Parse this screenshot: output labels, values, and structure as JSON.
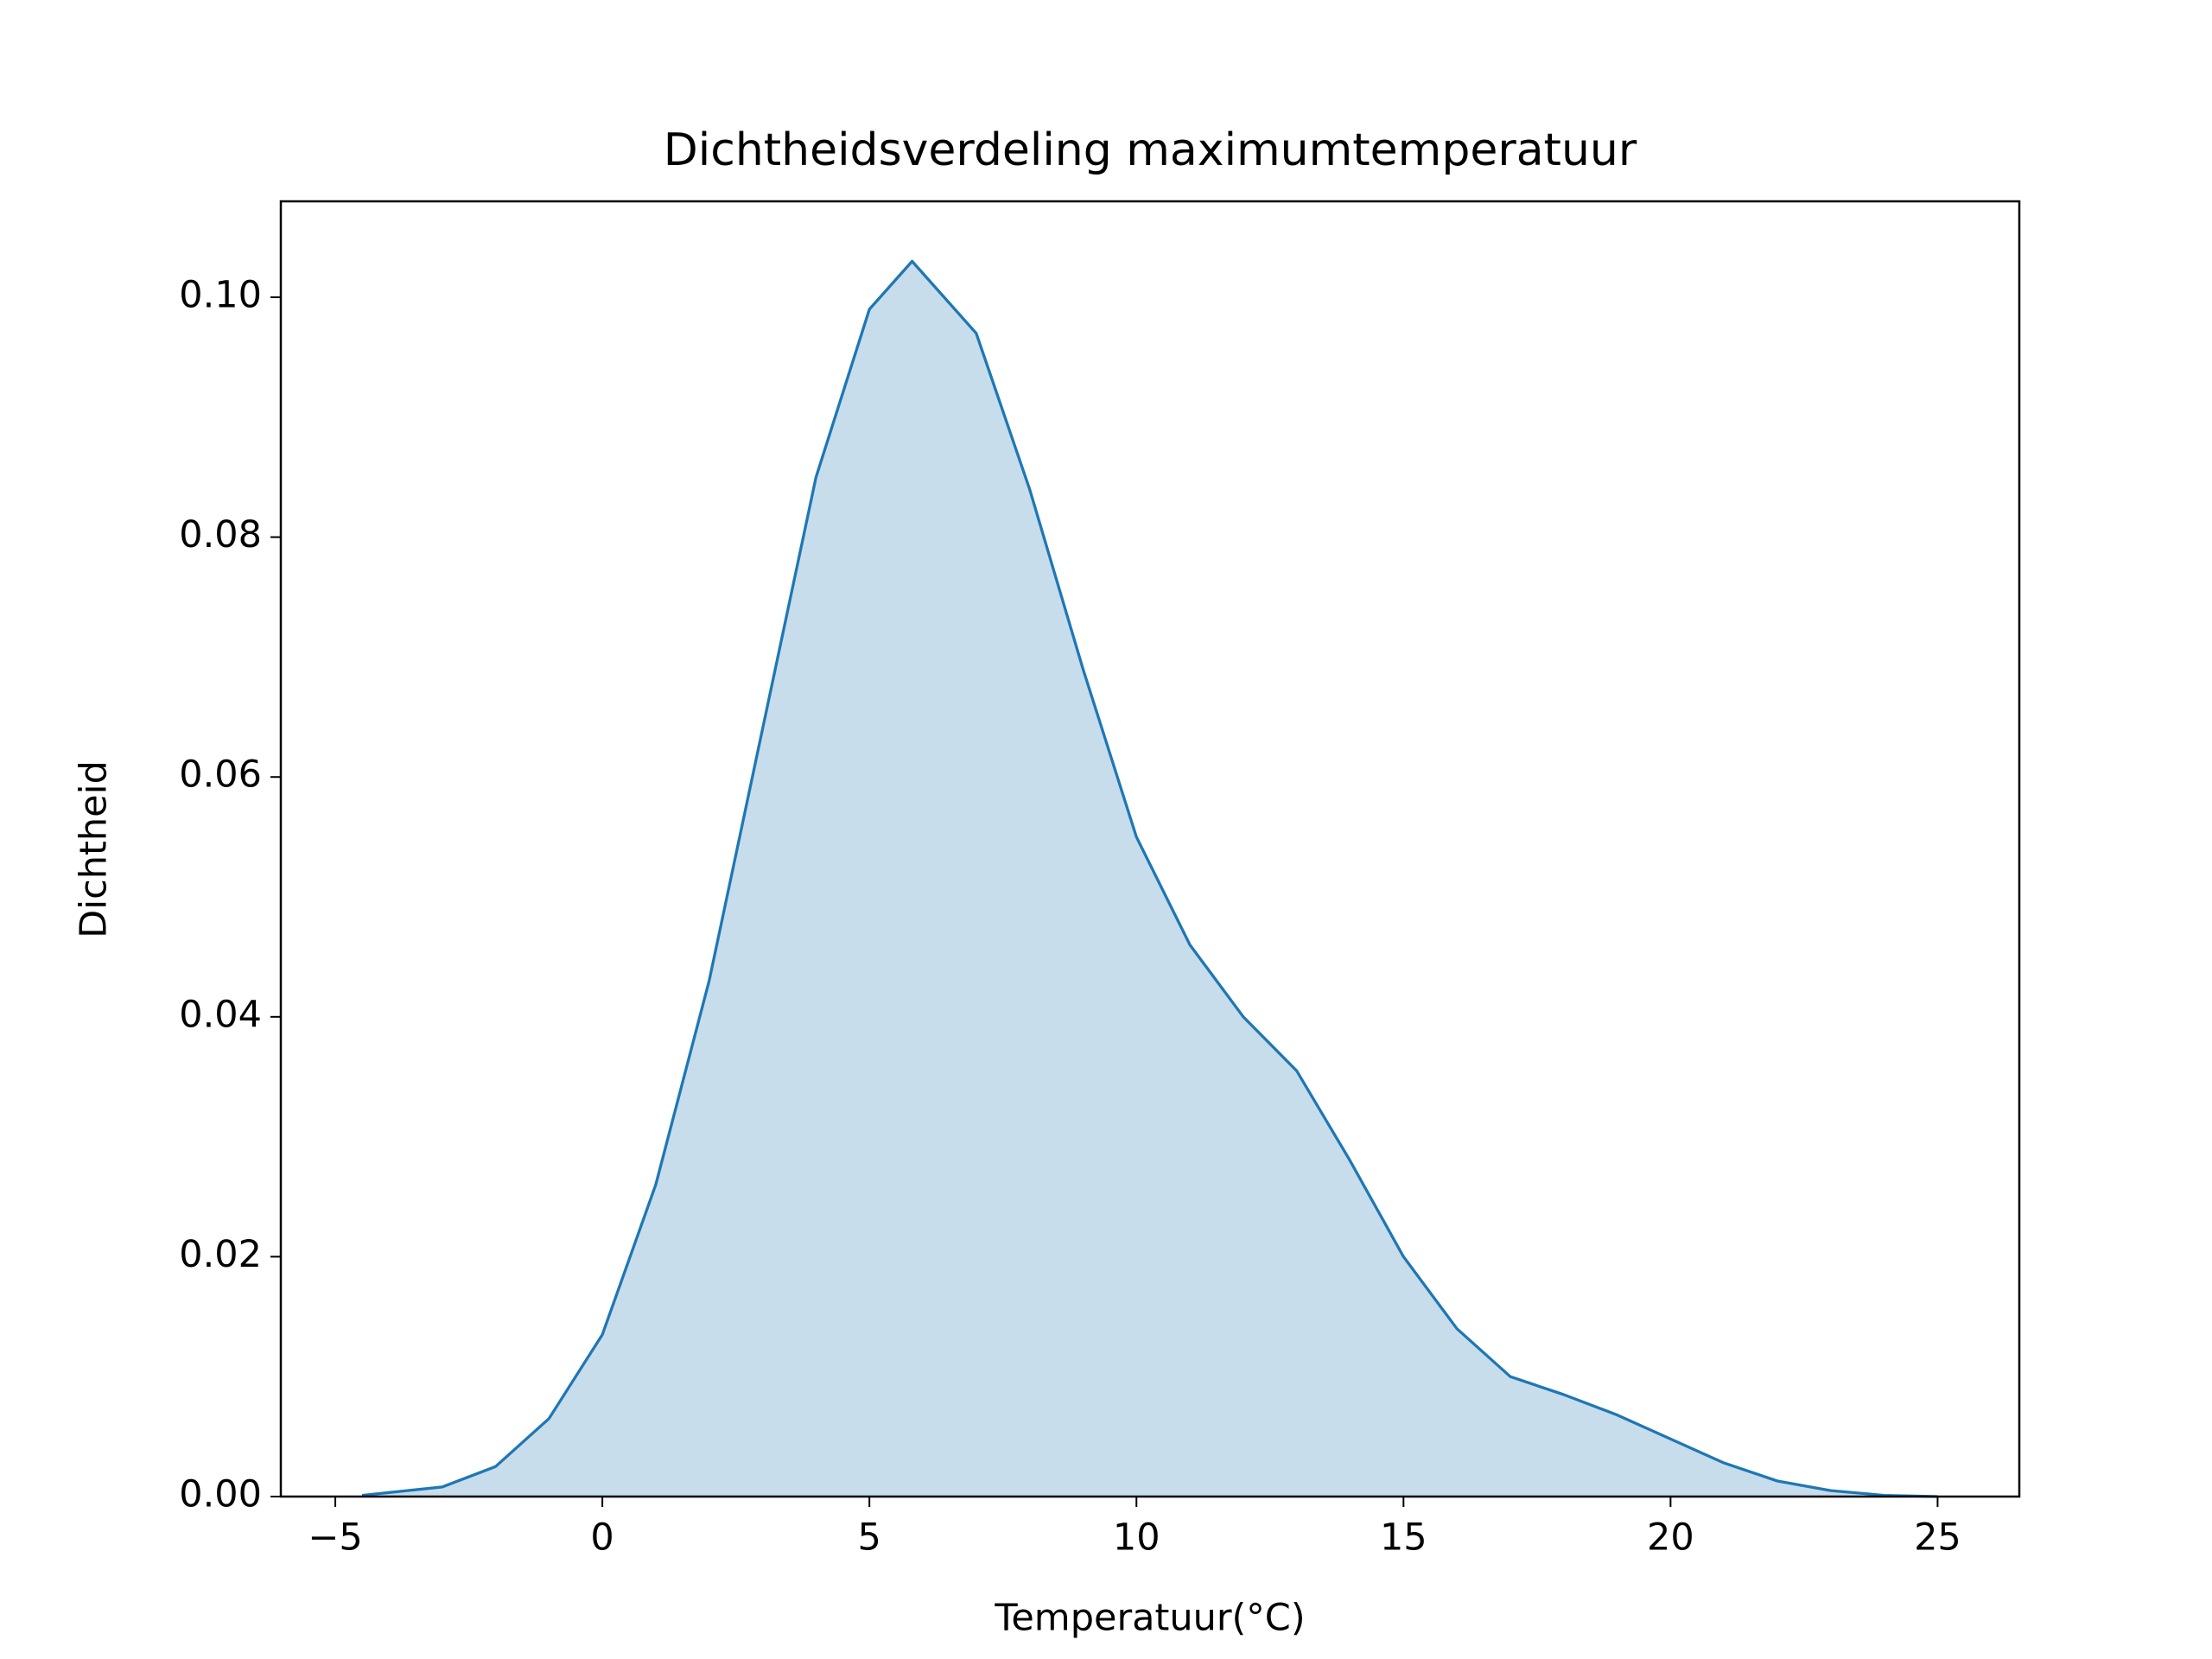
{
  "chart_data": {
    "type": "area",
    "title": "Dichtheidsverdeling maximumtemperatuur",
    "xlabel": "Temperatuur(°C)",
    "ylabel": "Dichtheid",
    "x": [
      -4.5,
      -3,
      -2,
      -1,
      0,
      1,
      2,
      3,
      4,
      5,
      5.8,
      7,
      8,
      9,
      10,
      11,
      12,
      13,
      14,
      15,
      16,
      17,
      18,
      19,
      20,
      21,
      22,
      23,
      24,
      25
    ],
    "series": [
      {
        "color": "#1f77b4",
        "values": [
          0.0001,
          0.0008,
          0.0025,
          0.0065,
          0.0135,
          0.026,
          0.043,
          0.064,
          0.085,
          0.099,
          0.103,
          0.097,
          0.084,
          0.069,
          0.055,
          0.046,
          0.04,
          0.0355,
          0.028,
          0.02,
          0.014,
          0.01,
          0.0085,
          0.0068,
          0.0048,
          0.0028,
          0.0013,
          0.0005,
          0.0001,
          0.0
        ]
      }
    ],
    "xlim": [
      -6.02,
      26.53
    ],
    "ylim": [
      0,
      0.108
    ],
    "xticks": [
      {
        "value": -5,
        "label": "−5"
      },
      0,
      5,
      10,
      15,
      20,
      25
    ],
    "yticks": [
      {
        "value": 0,
        "label": "0.00"
      },
      {
        "value": 0.02,
        "label": "0.02"
      },
      {
        "value": 0.04,
        "label": "0.04"
      },
      {
        "value": 0.06,
        "label": "0.06"
      },
      {
        "value": 0.08,
        "label": "0.08"
      },
      {
        "value": 0.1,
        "label": "0.10"
      }
    ],
    "fill_opacity": 0.25,
    "grid": false
  }
}
